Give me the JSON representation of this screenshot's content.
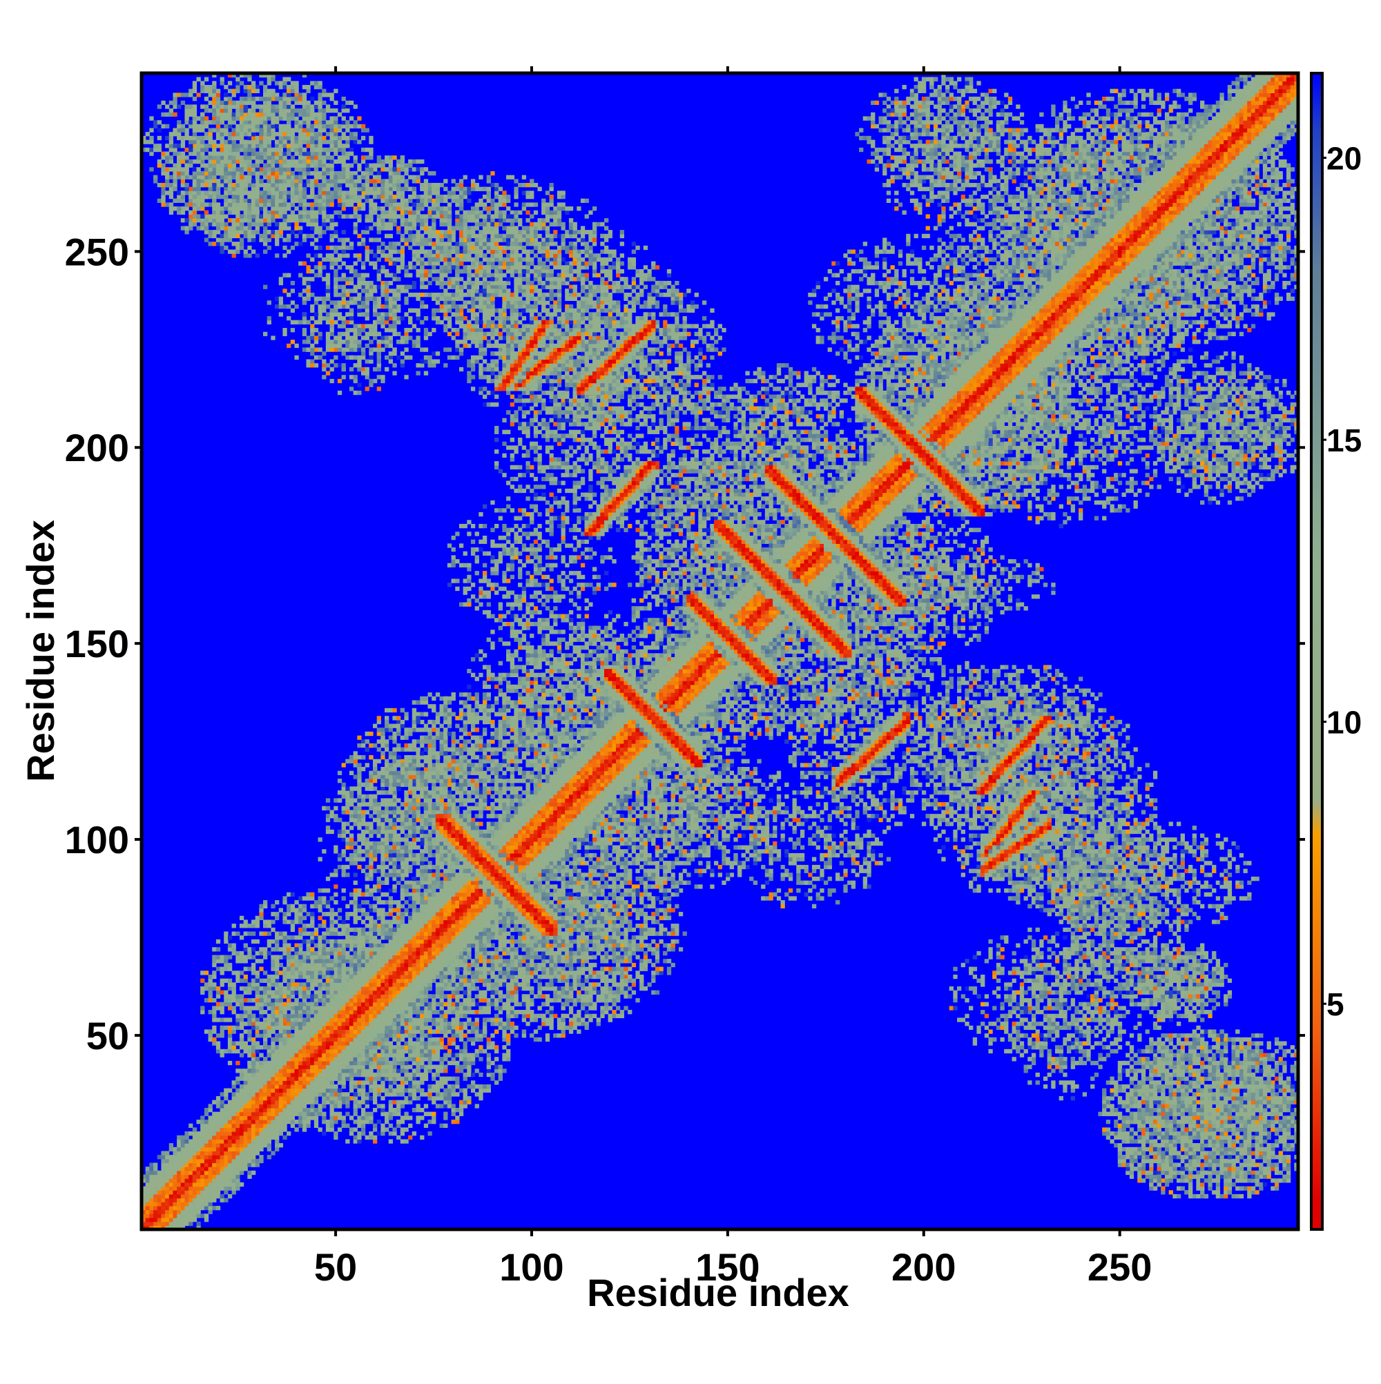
{
  "chart_data": {
    "type": "heatmap",
    "title": "",
    "xlabel": "Residue index",
    "ylabel": "Residue index",
    "n_residues": 295,
    "xlim": [
      1,
      295
    ],
    "ylim": [
      1,
      295
    ],
    "x_ticks": [
      50,
      100,
      150,
      200,
      250
    ],
    "y_ticks": [
      50,
      100,
      150,
      200,
      250
    ],
    "colorbar": {
      "ticks": [
        5,
        10,
        15,
        20
      ],
      "range": [
        1,
        21.5
      ],
      "stops": [
        {
          "value": 1.5,
          "color": "#e00000"
        },
        {
          "value": 4.5,
          "color": "#f06010"
        },
        {
          "value": 8.0,
          "color": "#f8a000"
        },
        {
          "value": 8.6,
          "color": "#9aae86"
        },
        {
          "value": 13.0,
          "color": "#8fb090"
        },
        {
          "value": 18.0,
          "color": "#5f7f9a"
        },
        {
          "value": 20.5,
          "color": "#2040c8"
        },
        {
          "value": 21.5,
          "color": "#0000ff"
        }
      ]
    },
    "background_color": "#0000ff",
    "contact_segments": [
      {
        "a": [
          1,
          1
        ],
        "b": [
          295,
          295
        ],
        "w": 4.5,
        "kind": "diagonal"
      },
      {
        "a": [
          82,
          100
        ],
        "b": [
          100,
          82
        ],
        "w": 2.5,
        "kind": "antiparallel"
      },
      {
        "a": [
          145,
          157
        ],
        "b": [
          157,
          145
        ],
        "w": 2.2,
        "kind": "antiparallel"
      },
      {
        "a": [
          152,
          176
        ],
        "b": [
          176,
          152
        ],
        "w": 2.2,
        "kind": "antiparallel"
      },
      {
        "a": [
          165,
          190
        ],
        "b": [
          190,
          165
        ],
        "w": 2.2,
        "kind": "antiparallel"
      },
      {
        "a": [
          188,
          210
        ],
        "b": [
          210,
          188
        ],
        "w": 2.0,
        "kind": "antiparallel"
      },
      {
        "a": [
          124,
          138
        ],
        "b": [
          138,
          124
        ],
        "w": 2.0,
        "kind": "antiparallel"
      },
      {
        "a": [
          100,
          219
        ],
        "b": [
          108,
          225
        ],
        "w": 1.5,
        "kind": "parallel"
      },
      {
        "a": [
          118,
          218
        ],
        "b": [
          126,
          227
        ],
        "w": 1.5,
        "kind": "parallel"
      },
      {
        "a": [
          118,
          182
        ],
        "b": [
          128,
          192
        ],
        "w": 1.5,
        "kind": "parallel"
      },
      {
        "a": [
          182,
          118
        ],
        "b": [
          192,
          127
        ],
        "w": 1.5,
        "kind": "parallel"
      },
      {
        "a": [
          218,
          116
        ],
        "b": [
          228,
          127
        ],
        "w": 1.5,
        "kind": "parallel"
      },
      {
        "a": [
          219,
          95
        ],
        "b": [
          228,
          101
        ],
        "w": 1.5,
        "kind": "parallel"
      }
    ],
    "contact_regions": [
      {
        "cx": 30,
        "cy": 270,
        "rx": 25,
        "ry": 22,
        "level": 0.75
      },
      {
        "cx": 63,
        "cy": 265,
        "rx": 14,
        "ry": 10,
        "level": 0.6
      },
      {
        "cx": 85,
        "cy": 248,
        "rx": 14,
        "ry": 20,
        "level": 0.6
      },
      {
        "cx": 100,
        "cy": 233,
        "rx": 22,
        "ry": 18,
        "level": 0.55
      },
      {
        "cx": 125,
        "cy": 225,
        "rx": 25,
        "ry": 20,
        "level": 0.5
      },
      {
        "cx": 60,
        "cy": 235,
        "rx": 30,
        "ry": 18,
        "level": 0.4
      },
      {
        "cx": 50,
        "cy": 60,
        "rx": 35,
        "ry": 28,
        "level": 0.8
      },
      {
        "cx": 80,
        "cy": 110,
        "rx": 30,
        "ry": 28,
        "level": 0.5
      },
      {
        "cx": 110,
        "cy": 80,
        "rx": 28,
        "ry": 28,
        "level": 0.5
      },
      {
        "cx": 120,
        "cy": 130,
        "rx": 28,
        "ry": 28,
        "level": 0.6
      },
      {
        "cx": 165,
        "cy": 165,
        "rx": 40,
        "ry": 40,
        "level": 0.55
      },
      {
        "cx": 210,
        "cy": 210,
        "rx": 28,
        "ry": 28,
        "level": 0.55
      },
      {
        "cx": 200,
        "cy": 125,
        "rx": 35,
        "ry": 22,
        "level": 0.5
      },
      {
        "cx": 230,
        "cy": 110,
        "rx": 30,
        "ry": 28,
        "level": 0.5
      },
      {
        "cx": 255,
        "cy": 90,
        "rx": 30,
        "ry": 15,
        "level": 0.55
      },
      {
        "cx": 235,
        "cy": 55,
        "rx": 15,
        "ry": 22,
        "level": 0.4
      },
      {
        "cx": 265,
        "cy": 65,
        "rx": 12,
        "ry": 10,
        "level": 0.6
      },
      {
        "cx": 275,
        "cy": 30,
        "rx": 30,
        "ry": 22,
        "level": 0.75
      },
      {
        "cx": 255,
        "cy": 262,
        "rx": 40,
        "ry": 30,
        "level": 0.7
      },
      {
        "cx": 240,
        "cy": 230,
        "rx": 30,
        "ry": 25,
        "level": 0.55
      },
      {
        "cx": 280,
        "cy": 205,
        "rx": 22,
        "ry": 15,
        "level": 0.55
      },
      {
        "cx": 205,
        "cy": 275,
        "rx": 18,
        "ry": 20,
        "level": 0.55
      },
      {
        "cx": 200,
        "cy": 235,
        "rx": 30,
        "ry": 20,
        "level": 0.45
      },
      {
        "cx": 100,
        "cy": 70,
        "rx": 25,
        "ry": 22,
        "level": 0.5
      },
      {
        "cx": 165,
        "cy": 205,
        "rx": 15,
        "ry": 18,
        "level": 0.45
      },
      {
        "cx": 100,
        "cy": 170,
        "rx": 22,
        "ry": 18,
        "level": 0.45
      },
      {
        "cx": 140,
        "cy": 105,
        "rx": 22,
        "ry": 18,
        "level": 0.45
      },
      {
        "cx": 212,
        "cy": 165,
        "rx": 22,
        "ry": 8,
        "level": 0.45
      }
    ]
  }
}
